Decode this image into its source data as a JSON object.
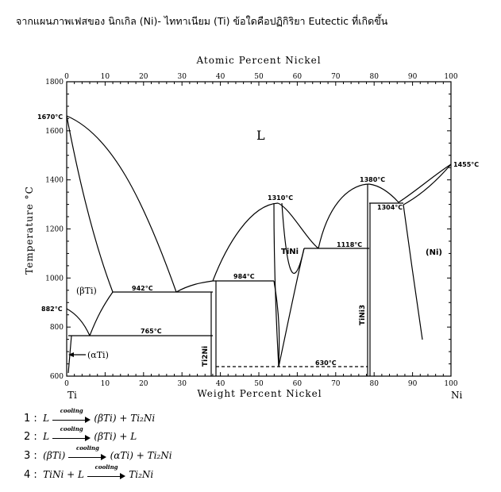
{
  "question": "จากแผนภาพเฟสของ นิกเกิล (Ni)- ไททาเนียม (Ti) ข้อใดคือปฏิกิริยา Eutectic ที่เกิดขึ้น",
  "diagram": {
    "top_axis_title": "Atomic Percent Nickel",
    "bottom_axis_title": "Weight Percent Nickel",
    "y_axis_title": "Temperature °C",
    "left_element": "Ti",
    "right_element": "Ni",
    "top_ticks": [
      "0",
      "10",
      "20",
      "30",
      "40",
      "50",
      "60",
      "70",
      "80",
      "90",
      "100"
    ],
    "bottom_ticks": [
      "0",
      "10",
      "20",
      "30",
      "40",
      "50",
      "60",
      "70",
      "80",
      "90",
      "100"
    ],
    "y_ticks": [
      "600",
      "800",
      "1000",
      "1200",
      "1400",
      "1600",
      "1800"
    ],
    "labels": {
      "liquid": "L",
      "beta_ti": "(βTi)",
      "alpha_ti": "(αTi)",
      "tini": "TiNi",
      "ni": "(Ni)",
      "ti2ni": "Ti2Ni",
      "tini3": "TiNi3",
      "t1670": "1670°C",
      "t882": "882°C",
      "t942": "942°C",
      "t765": "765°C",
      "t984": "984°C",
      "t1310": "1310°C",
      "t1118": "1118°C",
      "t1380": "1380°C",
      "t1304": "1304°C",
      "t1455": "1455°C",
      "t630": "630°C"
    }
  },
  "options": [
    {
      "num": "1 :",
      "left": "L",
      "arrow_label": "cooling",
      "right": "(βTi) + Ti₂Ni"
    },
    {
      "num": "2 :",
      "left": "L",
      "arrow_label": "cooling",
      "right": "(βTi) + L"
    },
    {
      "num": "3 :",
      "left": "(βTi)",
      "arrow_label": "cooling",
      "right": "(αTi) + Ti₂Ni"
    },
    {
      "num": "4 :",
      "left": "TiNi + L",
      "arrow_label": "cooling",
      "right": "Ti₂Ni"
    }
  ]
}
